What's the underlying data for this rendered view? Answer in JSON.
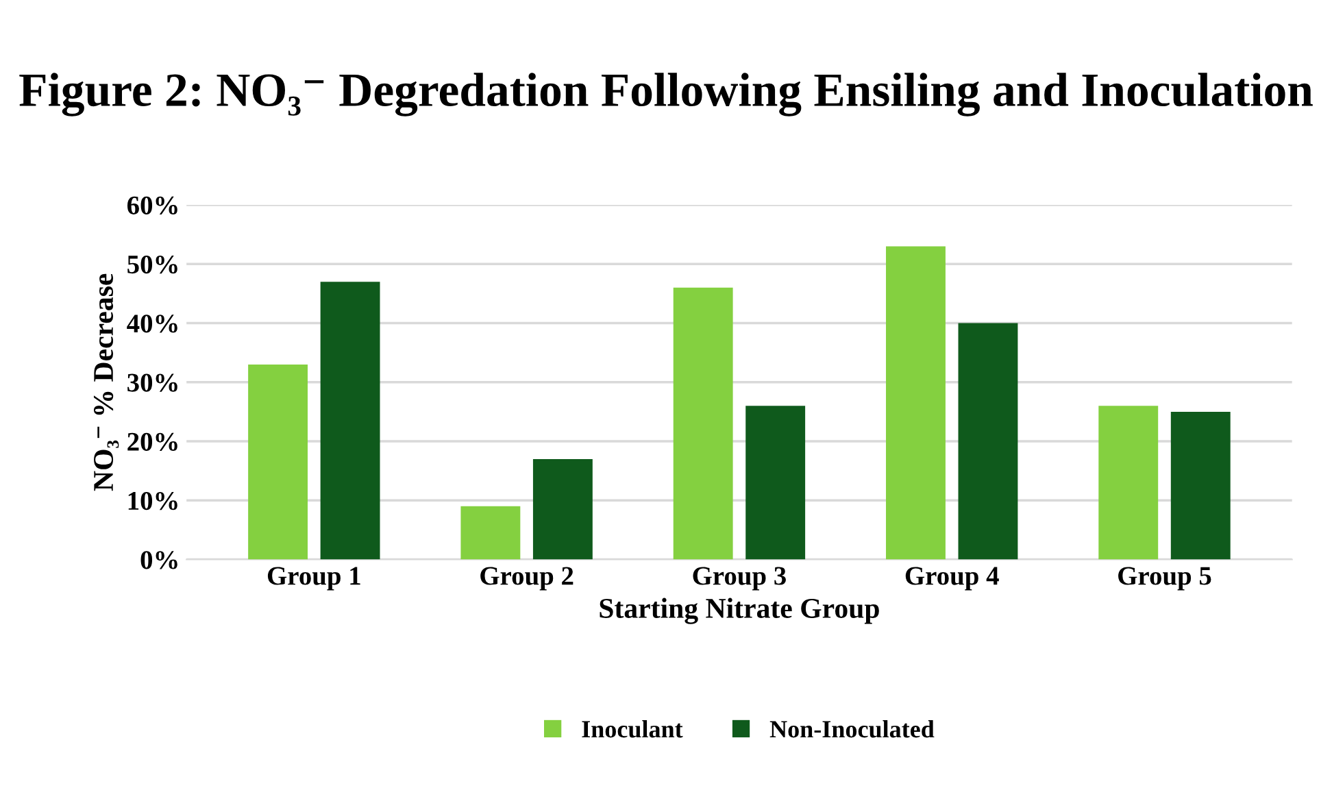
{
  "chart_data": {
    "type": "bar",
    "title": "Figure 2: NO₃⁻ Degredation Following Ensiling and Inoculation",
    "xlabel": "Starting Nitrate Group",
    "ylabel": "NO₃⁻ % Decrease",
    "categories": [
      "Group 1",
      "Group 2",
      "Group 3",
      "Group 4",
      "Group 5"
    ],
    "series": [
      {
        "name": "Inoculant",
        "color": "#84d040",
        "values": [
          33,
          9,
          46,
          53,
          26
        ]
      },
      {
        "name": "Non-Inoculated",
        "color": "#0f5a1c",
        "values": [
          47,
          17,
          26,
          40,
          25
        ]
      }
    ],
    "ylim": [
      0,
      60
    ],
    "yticks": [
      {
        "value": 0,
        "label": "0%"
      },
      {
        "value": 10,
        "label": "10%"
      },
      {
        "value": 20,
        "label": "20%"
      },
      {
        "value": 30,
        "label": "30%"
      },
      {
        "value": 40,
        "label": "40%"
      },
      {
        "value": 50,
        "label": "50%"
      },
      {
        "value": 60,
        "label": "60%"
      }
    ],
    "grid": "y",
    "legend": "bottom"
  }
}
